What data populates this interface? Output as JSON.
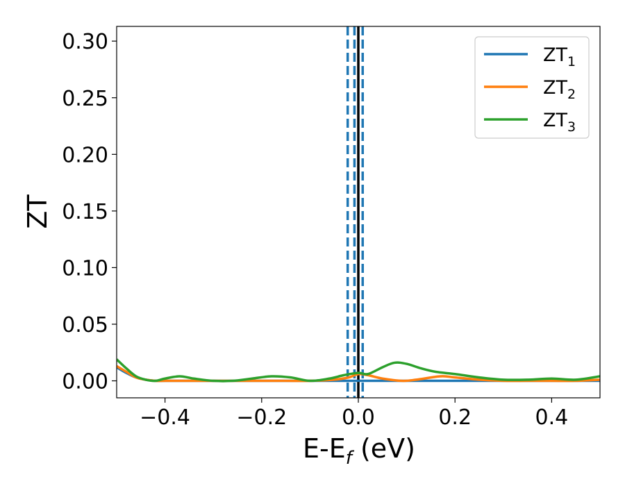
{
  "chart_data": {
    "type": "line",
    "xlabel": "E-E",
    "xlabel_sub": "f",
    "xlabel_unit": " (eV)",
    "ylabel": "ZT",
    "xlim": [
      -0.5,
      0.5
    ],
    "ylim": [
      -0.015,
      0.313
    ],
    "xticks": [
      -0.4,
      -0.2,
      0.0,
      0.2,
      0.4
    ],
    "xtick_labels": [
      "−0.4",
      "−0.2",
      "0.0",
      "0.2",
      "0.4"
    ],
    "yticks": [
      0.0,
      0.05,
      0.1,
      0.15,
      0.2,
      0.25,
      0.3
    ],
    "ytick_labels": [
      "0.00",
      "0.05",
      "0.10",
      "0.15",
      "0.20",
      "0.25",
      "0.30"
    ],
    "grid": false,
    "legend_position": "top-right",
    "vlines": [
      {
        "x": 0.0,
        "style": "solid",
        "color": "#000000"
      },
      {
        "x": -0.022,
        "style": "dashed",
        "color": "#1f77b4"
      },
      {
        "x": -0.008,
        "style": "dashed",
        "color": "#1f77b4"
      },
      {
        "x": 0.009,
        "style": "dashed",
        "color": "#1f77b4"
      }
    ],
    "series": [
      {
        "name": "ZT",
        "sub": "1",
        "color": "#1f77b4",
        "x": [
          -0.5,
          -0.48,
          -0.46,
          -0.44,
          -0.42,
          -0.4,
          -0.35,
          -0.3,
          -0.25,
          -0.2,
          -0.15,
          -0.1,
          -0.05,
          -0.02,
          0.0,
          0.02,
          0.1,
          0.2,
          0.3,
          0.4,
          0.5
        ],
        "y": [
          0.012,
          0.007,
          0.003,
          0.001,
          0.0,
          0.0,
          0.0,
          0.0,
          0.0,
          0.0,
          0.0,
          0.0,
          0.0,
          0.0,
          0.0,
          0.0,
          0.0,
          0.0,
          0.0,
          0.0,
          0.0
        ]
      },
      {
        "name": "ZT",
        "sub": "2",
        "color": "#ff7f0e",
        "x": [
          -0.5,
          -0.48,
          -0.46,
          -0.44,
          -0.42,
          -0.4,
          -0.35,
          -0.3,
          -0.25,
          -0.2,
          -0.15,
          -0.1,
          -0.05,
          -0.02,
          0.0,
          0.02,
          0.05,
          0.09,
          0.12,
          0.17,
          0.2,
          0.25,
          0.3,
          0.35,
          0.4,
          0.45,
          0.5
        ],
        "y": [
          0.013,
          0.008,
          0.003,
          0.001,
          0.0,
          0.0,
          0.0,
          0.0,
          0.0,
          0.0,
          0.0,
          0.0,
          0.001,
          0.003,
          0.006,
          0.005,
          0.002,
          0.0,
          0.001,
          0.004,
          0.003,
          0.001,
          0.0,
          0.0,
          0.0,
          0.0,
          0.001
        ]
      },
      {
        "name": "ZT",
        "sub": "3",
        "color": "#2ca02c",
        "x": [
          -0.5,
          -0.48,
          -0.46,
          -0.44,
          -0.42,
          -0.4,
          -0.37,
          -0.34,
          -0.3,
          -0.26,
          -0.22,
          -0.18,
          -0.14,
          -0.1,
          -0.06,
          -0.03,
          0.0,
          0.02,
          0.05,
          0.075,
          0.1,
          0.13,
          0.16,
          0.2,
          0.25,
          0.3,
          0.35,
          0.4,
          0.45,
          0.5
        ],
        "y": [
          0.019,
          0.011,
          0.004,
          0.001,
          0.0,
          0.002,
          0.004,
          0.002,
          0.0,
          0.0,
          0.002,
          0.004,
          0.003,
          0.0,
          0.002,
          0.005,
          0.007,
          0.006,
          0.012,
          0.016,
          0.015,
          0.011,
          0.008,
          0.006,
          0.003,
          0.001,
          0.001,
          0.002,
          0.001,
          0.004
        ]
      }
    ]
  }
}
